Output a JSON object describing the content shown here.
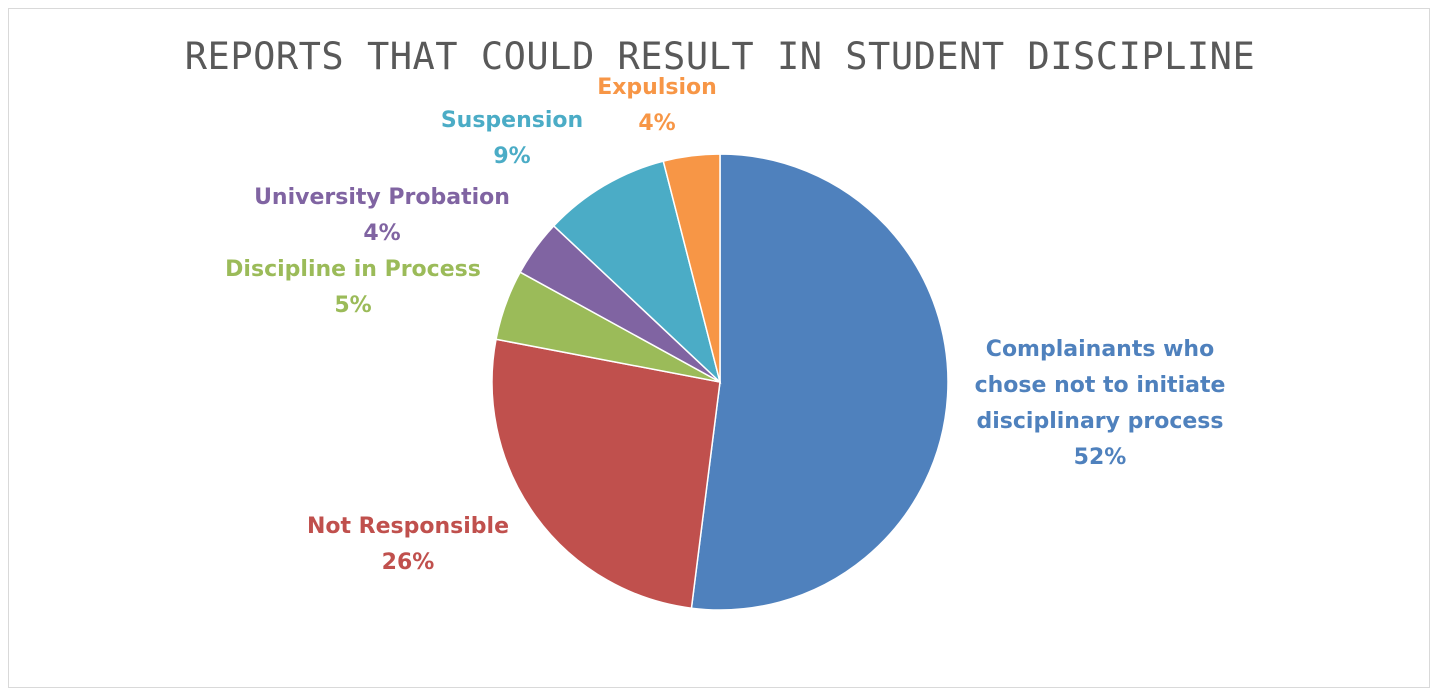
{
  "chart_data": {
    "type": "pie",
    "title": "REPORTS THAT COULD RESULT IN STUDENT DISCIPLINE",
    "slices": [
      {
        "label": "Complainants who\nchose not to initiate\ndisciplinary process",
        "value": 52,
        "percent_label": "52%",
        "color": "#4F81BD"
      },
      {
        "label": "Not Responsible",
        "value": 26,
        "percent_label": "26%",
        "color": "#C0504D"
      },
      {
        "label": "Discipline in Process",
        "value": 5,
        "percent_label": "5%",
        "color": "#9BBB59"
      },
      {
        "label": "University Probation",
        "value": 4,
        "percent_label": "4%",
        "color": "#8064A2"
      },
      {
        "label": "Suspension",
        "value": 9,
        "percent_label": "9%",
        "color": "#4BACC6"
      },
      {
        "label": "Expulsion",
        "value": 4,
        "percent_label": "4%",
        "color": "#F79646"
      }
    ],
    "start": "12 o'clock",
    "direction": "clockwise",
    "legend": "none"
  }
}
